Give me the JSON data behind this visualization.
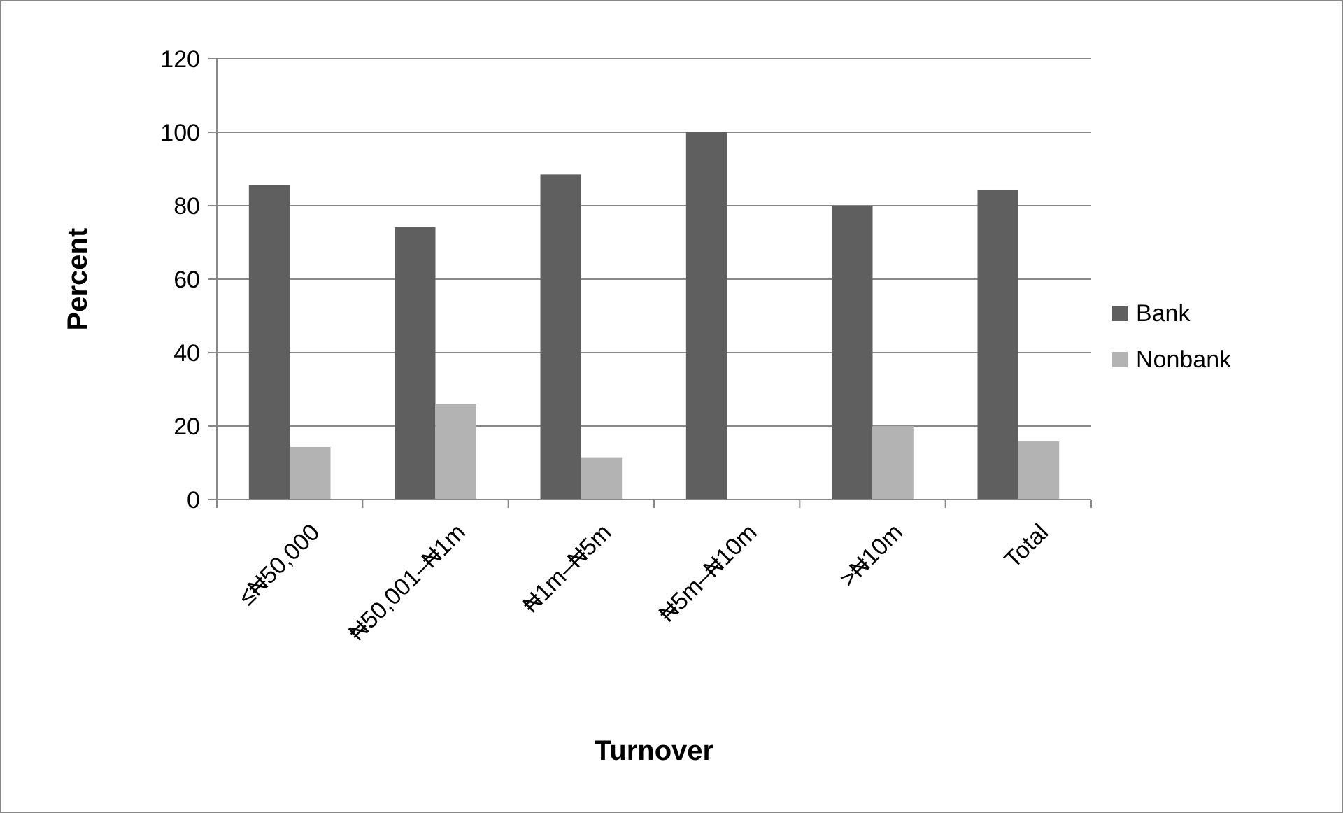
{
  "chart_data": {
    "type": "bar",
    "xlabel": "Turnover",
    "ylabel": "Percent",
    "categories": [
      "≤₦50,000",
      "₦50,001–₦1m",
      "₦1m–₦5m",
      "₦5m–₦10m",
      ">₦10m",
      "Total"
    ],
    "series": [
      {
        "name": "Bank",
        "color": "#5f5f5f",
        "values": [
          85.7,
          74.1,
          88.5,
          100,
          80,
          84.2
        ]
      },
      {
        "name": "Nonbank",
        "color": "#b3b3b3",
        "values": [
          14.3,
          25.9,
          11.5,
          0,
          20,
          15.8
        ]
      }
    ],
    "ylim": [
      0,
      120
    ],
    "yticks": [
      0,
      20,
      40,
      60,
      80,
      100,
      120
    ],
    "grid": "y",
    "legend": "right"
  }
}
